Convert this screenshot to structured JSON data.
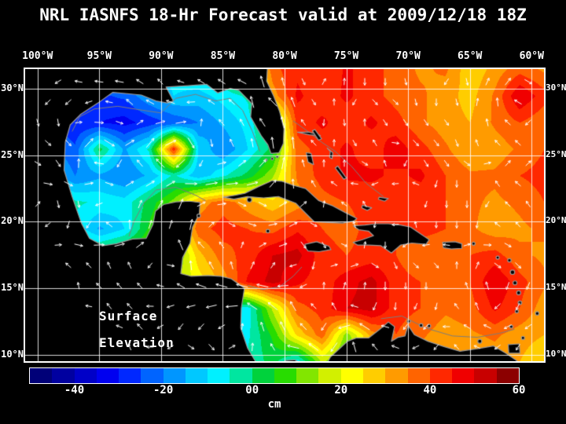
{
  "title": "NRL IASNFS  18-Hr Forecast valid at 2009/12/18 18Z",
  "map": {
    "annotation": {
      "line1": "Surface",
      "line2": "Elevation"
    },
    "lon_ticks": [
      {
        "label": "100°W",
        "lon": 100
      },
      {
        "label": "95°W",
        "lon": 95
      },
      {
        "label": "90°W",
        "lon": 90
      },
      {
        "label": "85°W",
        "lon": 85
      },
      {
        "label": "80°W",
        "lon": 80
      },
      {
        "label": "75°W",
        "lon": 75
      },
      {
        "label": "70°W",
        "lon": 70
      },
      {
        "label": "65°W",
        "lon": 65
      },
      {
        "label": "60°W",
        "lon": 60
      }
    ],
    "lat_ticks": [
      {
        "label": "30°N",
        "lat": 30
      },
      {
        "label": "25°N",
        "lat": 25
      },
      {
        "label": "20°N",
        "lat": 20
      },
      {
        "label": "15°N",
        "lat": 15
      },
      {
        "label": "10°N",
        "lat": 10
      }
    ]
  },
  "colorbar": {
    "unit": "cm",
    "range": [
      -50,
      60
    ],
    "ticks": [
      {
        "label": "-40",
        "value": -40
      },
      {
        "label": "-20",
        "value": -20
      },
      {
        "label": "00",
        "value": 0
      },
      {
        "label": "20",
        "value": 20
      },
      {
        "label": "40",
        "value": 40
      },
      {
        "label": "60",
        "value": 60
      }
    ]
  },
  "chart_data": {
    "type": "heatmap",
    "model": "NRL IASNFS",
    "forecast": "18-Hr Forecast",
    "valid": "2009/12/18 18Z",
    "variable": "Surface Elevation",
    "unit": "cm",
    "lon_left_deg_w": 101,
    "lon_right_deg_w": 59,
    "lat_top_deg_n": 31.5,
    "lat_bottom_deg_n": 9.5,
    "lon_tick_values_deg_w": [
      100,
      95,
      90,
      85,
      80,
      75,
      70,
      65,
      60
    ],
    "lat_tick_values_deg_n": [
      30,
      25,
      20,
      15,
      10
    ],
    "colormap_range": [
      -50,
      60
    ],
    "colormap_colors": [
      "#000078",
      "#0000a0",
      "#0000c8",
      "#0000f0",
      "#0028ff",
      "#0064ff",
      "#0096ff",
      "#00c8ff",
      "#00f0ff",
      "#00e6a0",
      "#00d23c",
      "#28dc00",
      "#82e600",
      "#d2f000",
      "#ffff00",
      "#ffcd00",
      "#ff9b00",
      "#ff6400",
      "#ff2800",
      "#f00000",
      "#c80000",
      "#8c0000"
    ],
    "grid_lon_deg_w": [
      101,
      99,
      97,
      95,
      93,
      91,
      89,
      87,
      85,
      83,
      81,
      79,
      77,
      75,
      73,
      71,
      69,
      67,
      65,
      63,
      61,
      59
    ],
    "grid_lat_deg_n": [
      31.5,
      29.5,
      27.5,
      25.5,
      23.5,
      21.5,
      19.5,
      17.5,
      15.5,
      13.5,
      11.5,
      9.5
    ],
    "values_cm": [
      [
        -18,
        -18,
        -18,
        -14,
        -12,
        -10,
        -8,
        -4,
        2,
        12,
        38,
        44,
        40,
        46,
        42,
        38,
        34,
        36,
        26,
        32,
        38,
        34
      ],
      [
        -18,
        -20,
        -24,
        -26,
        -24,
        -16,
        -10,
        -12,
        -8,
        -4,
        32,
        46,
        42,
        46,
        42,
        38,
        36,
        32,
        28,
        36,
        50,
        42
      ],
      [
        -18,
        -24,
        -30,
        -30,
        -32,
        -28,
        -24,
        -20,
        -14,
        -8,
        6,
        42,
        46,
        42,
        46,
        42,
        36,
        32,
        30,
        36,
        40,
        36
      ],
      [
        -14,
        -18,
        -24,
        2,
        -16,
        -4,
        44,
        -10,
        -20,
        -10,
        2,
        38,
        42,
        46,
        42,
        48,
        42,
        36,
        30,
        32,
        36,
        40
      ],
      [
        -10,
        -12,
        -20,
        -16,
        -20,
        -14,
        -4,
        -14,
        -6,
        2,
        14,
        36,
        42,
        46,
        46,
        44,
        46,
        40,
        36,
        36,
        40,
        42
      ],
      [
        0,
        2,
        -4,
        -6,
        -8,
        2,
        12,
        32,
        38,
        32,
        26,
        32,
        38,
        40,
        42,
        42,
        42,
        40,
        36,
        34,
        36,
        40
      ],
      [
        0,
        0,
        -6,
        -16,
        -10,
        6,
        16,
        38,
        42,
        40,
        38,
        44,
        40,
        38,
        42,
        40,
        42,
        40,
        36,
        32,
        34,
        36
      ],
      [
        0,
        0,
        4,
        6,
        10,
        14,
        6,
        28,
        38,
        42,
        50,
        52,
        42,
        40,
        42,
        40,
        36,
        36,
        40,
        42,
        36,
        34
      ],
      [
        0,
        0,
        0,
        4,
        8,
        12,
        14,
        22,
        32,
        46,
        52,
        46,
        42,
        48,
        52,
        42,
        40,
        36,
        40,
        50,
        42,
        36
      ],
      [
        0,
        0,
        0,
        0,
        4,
        8,
        6,
        2,
        -4,
        -8,
        16,
        38,
        42,
        50,
        52,
        42,
        40,
        36,
        38,
        46,
        40,
        32
      ],
      [
        0,
        0,
        0,
        0,
        0,
        4,
        2,
        -4,
        -10,
        -6,
        6,
        26,
        38,
        12,
        32,
        40,
        36,
        32,
        34,
        36,
        32,
        30
      ],
      [
        0,
        0,
        0,
        0,
        0,
        0,
        0,
        2,
        -4,
        -4,
        2,
        -8,
        16,
        6,
        26,
        32,
        32,
        30,
        32,
        32,
        30,
        26
      ]
    ]
  }
}
